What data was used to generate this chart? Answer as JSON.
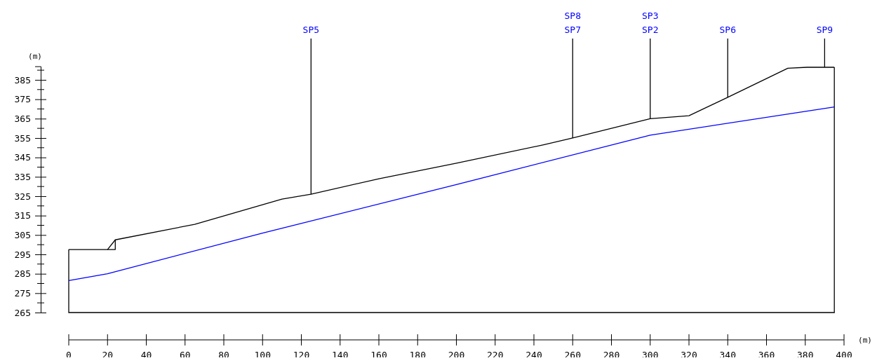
{
  "chart_data": {
    "type": "line",
    "xlabel": "(m)",
    "ylabel": "(m)",
    "xlim": [
      0,
      400
    ],
    "xticks": [
      0,
      20,
      40,
      60,
      80,
      100,
      120,
      140,
      160,
      180,
      200,
      220,
      240,
      260,
      280,
      300,
      320,
      340,
      360,
      380,
      400
    ],
    "ylim": [
      265,
      392
    ],
    "yticks": [
      265,
      275,
      285,
      295,
      305,
      315,
      325,
      335,
      345,
      355,
      365,
      375,
      385
    ],
    "series": [
      {
        "color": "#000000",
        "x": [
          0,
          20,
          24,
          65,
          110,
          125,
          160,
          200,
          245,
          260,
          300,
          320,
          340,
          371,
          381,
          395
        ],
        "values": [
          297.5,
          297.5,
          302.5,
          310.5,
          323.5,
          326,
          334,
          342,
          351.5,
          355,
          365,
          366.5,
          376,
          391,
          391.5,
          391.5
        ]
      },
      {
        "color": "#000000",
        "x": [
          20,
          24,
          24
        ],
        "values": [
          297.5,
          297.5,
          302.5
        ]
      },
      {
        "color": "#0000ff",
        "x": [
          0,
          20,
          100,
          200,
          300,
          395
        ],
        "values": [
          281.5,
          285,
          306,
          331,
          356.5,
          371
        ]
      }
    ],
    "annotations": [
      {
        "text": "SP5",
        "x": 125,
        "y": 326
      },
      {
        "text": "SP8\nSP7",
        "x": 260,
        "y": 355
      },
      {
        "text": "SP3\nSP2",
        "x": 300,
        "y": 365
      },
      {
        "text": "SP6",
        "x": 340,
        "y": 376
      },
      {
        "text": "SP9",
        "x": 390,
        "y": 391.5
      }
    ],
    "grid": false
  }
}
